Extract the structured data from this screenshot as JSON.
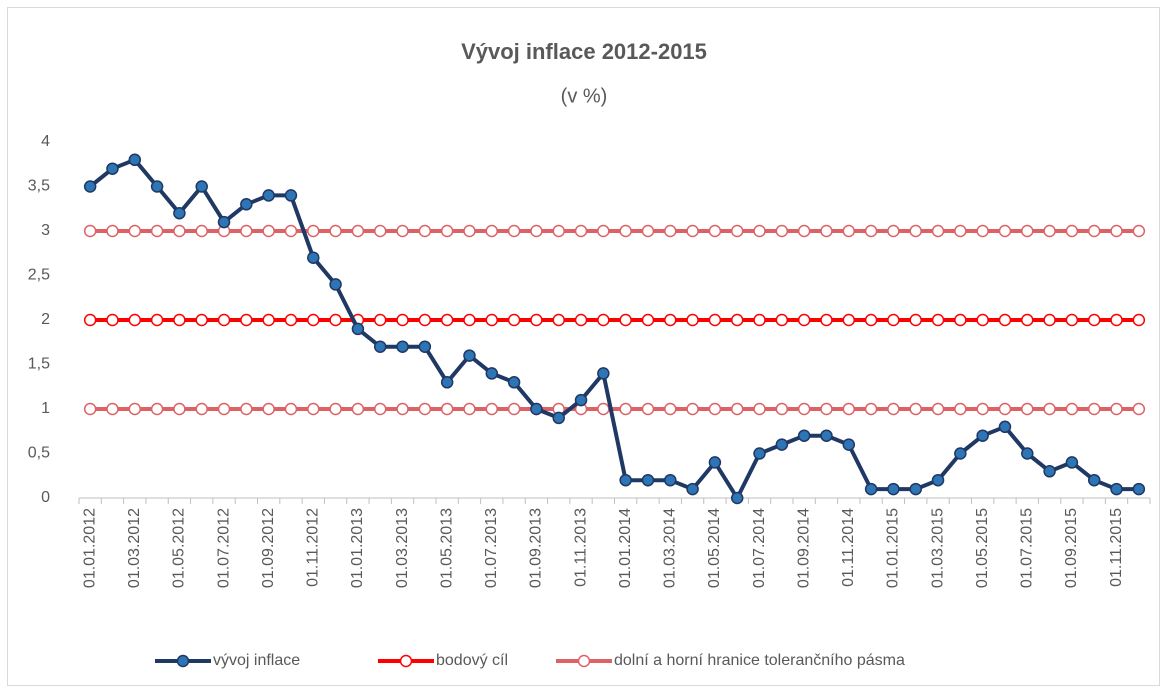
{
  "chart_data": {
    "type": "line",
    "title": "Vývoj inflace 2012-2015",
    "subtitle": "(v %)",
    "categories": [
      "01.01.2012",
      null,
      "01.03.2012",
      null,
      "01.05.2012",
      null,
      "01.07.2012",
      null,
      "01.09.2012",
      null,
      "01.11.2012",
      null,
      "01.01.2013",
      null,
      "01.03.2013",
      null,
      "01.05.2013",
      null,
      "01.07.2013",
      null,
      "01.09.2013",
      null,
      "01.11.2013",
      null,
      "01.01.2014",
      null,
      "01.03.2014",
      null,
      "01.05.2014",
      null,
      "01.07.2014",
      null,
      "01.09.2014",
      null,
      "01.11.2014",
      null,
      "01.01.2015",
      null,
      "01.03.2015",
      null,
      "01.05.2015",
      null,
      "01.07.2015",
      null,
      "01.09.2015",
      null,
      "01.11.2015",
      null
    ],
    "series": [
      {
        "name": "vývoj inflace",
        "color": "#1f3864",
        "marker_fill": "#2e75b6",
        "values": [
          3.5,
          3.7,
          3.8,
          3.5,
          3.2,
          3.5,
          3.1,
          3.3,
          3.4,
          3.4,
          2.7,
          2.4,
          1.9,
          1.7,
          1.7,
          1.7,
          1.3,
          1.6,
          1.4,
          1.3,
          1.0,
          0.9,
          1.1,
          1.4,
          0.2,
          0.2,
          0.2,
          0.1,
          0.4,
          0.0,
          0.5,
          0.6,
          0.7,
          0.7,
          0.6,
          0.1,
          0.1,
          0.1,
          0.2,
          0.5,
          0.7,
          0.8,
          0.5,
          0.3,
          0.4,
          0.2,
          0.1,
          0.1
        ]
      },
      {
        "name": "bodový cíl",
        "color": "#ff0000",
        "marker_fill": "#ffffff",
        "values": [
          2,
          2,
          2,
          2,
          2,
          2,
          2,
          2,
          2,
          2,
          2,
          2,
          2,
          2,
          2,
          2,
          2,
          2,
          2,
          2,
          2,
          2,
          2,
          2,
          2,
          2,
          2,
          2,
          2,
          2,
          2,
          2,
          2,
          2,
          2,
          2,
          2,
          2,
          2,
          2,
          2,
          2,
          2,
          2,
          2,
          2,
          2,
          2
        ]
      },
      {
        "name": "dolní a horní hranice tolerančního pásma",
        "color": "#dc6266",
        "marker_fill": "#ffffff",
        "values": [
          1,
          1,
          1,
          1,
          1,
          1,
          1,
          1,
          1,
          1,
          1,
          1,
          1,
          1,
          1,
          1,
          1,
          1,
          1,
          1,
          1,
          1,
          1,
          1,
          1,
          1,
          1,
          1,
          1,
          1,
          1,
          1,
          1,
          1,
          1,
          1,
          1,
          1,
          1,
          1,
          1,
          1,
          1,
          1,
          1,
          1,
          1,
          1
        ]
      },
      {
        "color": "#dc6266",
        "marker_fill": "#ffffff",
        "values": [
          3,
          3,
          3,
          3,
          3,
          3,
          3,
          3,
          3,
          3,
          3,
          3,
          3,
          3,
          3,
          3,
          3,
          3,
          3,
          3,
          3,
          3,
          3,
          3,
          3,
          3,
          3,
          3,
          3,
          3,
          3,
          3,
          3,
          3,
          3,
          3,
          3,
          3,
          3,
          3,
          3,
          3,
          3,
          3,
          3,
          3,
          3,
          3
        ]
      }
    ],
    "ylim": [
      0,
      4
    ],
    "yticks": [
      0,
      {
        "value": 0.5,
        "label": "0,5"
      },
      1,
      {
        "value": 1.5,
        "label": "1,5"
      },
      2,
      {
        "value": 2.5,
        "label": "2,5"
      },
      3,
      {
        "value": 3.5,
        "label": "3,5"
      },
      4
    ],
    "grid": false,
    "legend": "bottom"
  }
}
